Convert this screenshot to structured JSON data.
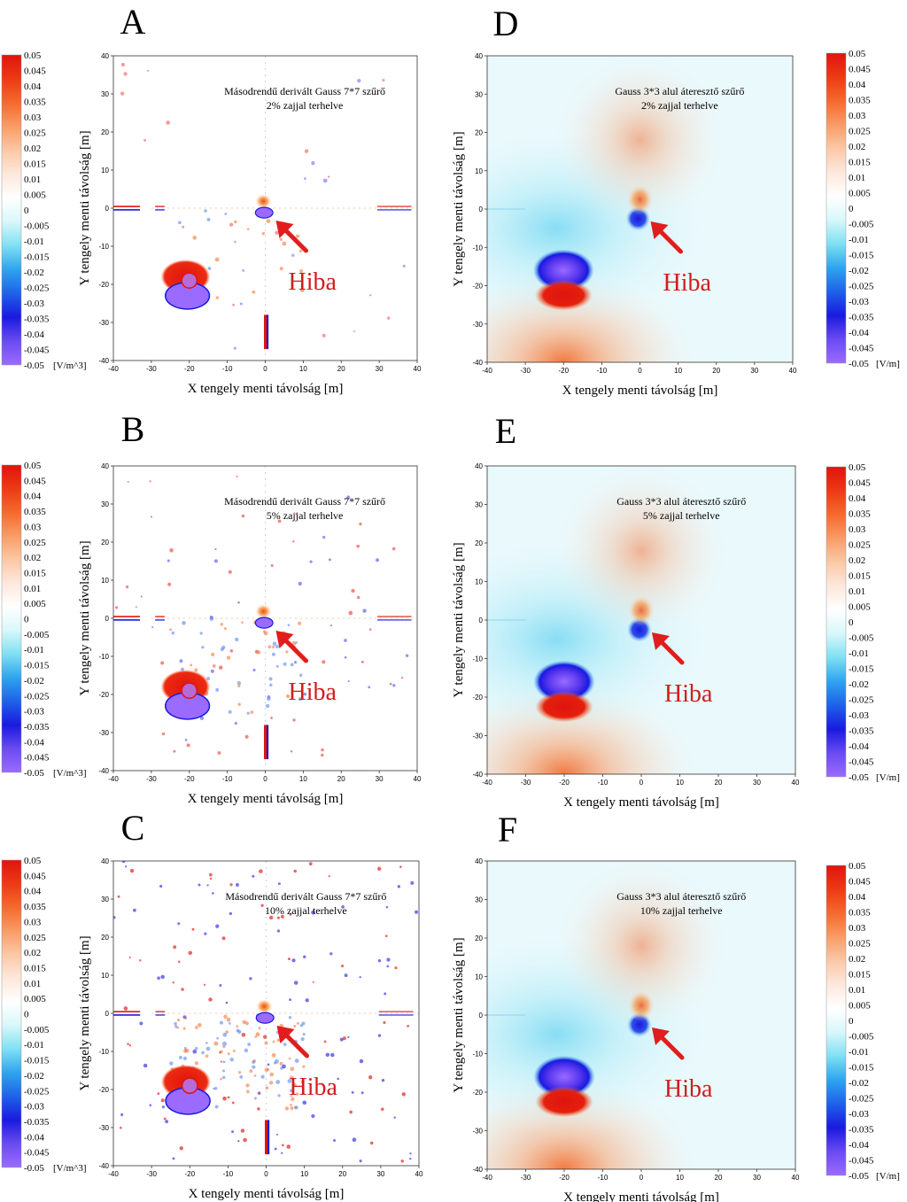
{
  "figure_title": "",
  "colors": {
    "colormap": [
      "#9b6bff",
      "#6a4bf0",
      "#1a1adf",
      "#1e62e8",
      "#2fa4ee",
      "#7fe0f3",
      "#d8f7fa",
      "#ffffff",
      "#fde8dc",
      "#fbc8a6",
      "#f99c66",
      "#f46a2e",
      "#ec3a14",
      "#e0140e"
    ],
    "arrow": "#e11d1d",
    "hiba_text": "#d11d1d"
  },
  "chart_data": [
    {
      "panel": "A",
      "type": "heatmap",
      "filter": "derivative",
      "annotation_line1": "Másodrendű derivált Gauss 7*7 szűrő",
      "annotation_line2": "2% zajjal terhelve",
      "arrow_label": "Hiba",
      "xlabel": "X tengely menti távolság [m]",
      "ylabel": "Y tengely menti távolság [m]",
      "xlim": [
        -40,
        40
      ],
      "ylim": [
        -40,
        40
      ],
      "xticks": [
        "-40",
        "-30",
        "-20",
        "-10",
        "0",
        "10",
        "20",
        "30",
        "40"
      ],
      "yticks": [
        "-40",
        "-30",
        "-20",
        "-10",
        "0",
        "10",
        "20",
        "30",
        "40"
      ],
      "colorbar_ticks": [
        "0.05",
        "0.045",
        "0.04",
        "0.035",
        "0.03",
        "0.025",
        "0.02",
        "0.015",
        "0.01",
        "0.005",
        "0",
        "-0.005",
        "-0.01",
        "-0.015",
        "-0.02",
        "-0.025",
        "-0.03",
        "-0.035",
        "-0.04",
        "-0.045",
        "-0.05"
      ],
      "colorbar_unit": "[V/m^3]",
      "colorbar_side": "left",
      "noise_level": 2
    },
    {
      "panel": "B",
      "type": "heatmap",
      "filter": "derivative",
      "annotation_line1": "Másodrendű derivált Gauss 7*7 szűrő",
      "annotation_line2": "5% zajjal terhelve",
      "arrow_label": "Hiba",
      "xlabel": "X tengely menti távolság [m]",
      "ylabel": "Y tengely menti távolság [m]",
      "xlim": [
        -40,
        40
      ],
      "ylim": [
        -40,
        40
      ],
      "xticks": [
        "-40",
        "-30",
        "-20",
        "-10",
        "0",
        "10",
        "20",
        "30",
        "40"
      ],
      "yticks": [
        "-40",
        "-30",
        "-20",
        "-10",
        "0",
        "10",
        "20",
        "30",
        "40"
      ],
      "colorbar_ticks": [
        "0.05",
        "0.045",
        "0.04",
        "0.035",
        "0.03",
        "0.025",
        "0.02",
        "0.015",
        "0.01",
        "0.005",
        "0",
        "-0.005",
        "-0.01",
        "-0.015",
        "-0.02",
        "-0.025",
        "-0.03",
        "-0.035",
        "-0.04",
        "-0.045",
        "-0.05"
      ],
      "colorbar_unit": "[V/m^3]",
      "colorbar_side": "left",
      "noise_level": 5
    },
    {
      "panel": "C",
      "type": "heatmap",
      "filter": "derivative",
      "annotation_line1": "Másodrendű derivált Gauss 7*7 szűrő",
      "annotation_line2": "10% zajjal terhelve",
      "arrow_label": "Hiba",
      "xlabel": "X tengely menti távolság [m]",
      "ylabel": "Y tengely menti távolság [m]",
      "xlim": [
        -40,
        40
      ],
      "ylim": [
        -40,
        40
      ],
      "xticks": [
        "-40",
        "-30",
        "-20",
        "-10",
        "0",
        "10",
        "20",
        "30",
        "40"
      ],
      "yticks": [
        "-40",
        "-30",
        "-20",
        "-10",
        "0",
        "10",
        "20",
        "30",
        "40"
      ],
      "colorbar_ticks": [
        "0.05",
        "0.045",
        "0.04",
        "0.035",
        "0.03",
        "0.025",
        "0.02",
        "0.015",
        "0.01",
        "0.005",
        "0",
        "-0.005",
        "-0.01",
        "-0.015",
        "-0.02",
        "-0.025",
        "-0.03",
        "-0.035",
        "-0.04",
        "-0.045",
        "-0.05"
      ],
      "colorbar_unit": "[V/m^3]",
      "colorbar_side": "left",
      "noise_level": 10
    },
    {
      "panel": "D",
      "type": "heatmap",
      "filter": "lowpass",
      "annotation_line1": "Gauss 3*3 alul áteresztő szűrő",
      "annotation_line2": "2% zajjal terhelve",
      "arrow_label": "Hiba",
      "xlabel": "X tengely menti távolság [m]",
      "ylabel": "Y tengely menti távolság [m]",
      "xlim": [
        -40,
        40
      ],
      "ylim": [
        -40,
        40
      ],
      "xticks": [
        "-40",
        "-30",
        "-20",
        "-10",
        "0",
        "10",
        "20",
        "30",
        "40"
      ],
      "yticks": [
        "-40",
        "-30",
        "-20",
        "-10",
        "0",
        "10",
        "20",
        "30",
        "40"
      ],
      "colorbar_ticks": [
        "0.05",
        "0.045",
        "0.04",
        "0.035",
        "0.03",
        "0.025",
        "0.02",
        "0.015",
        "0.01",
        "0.005",
        "0",
        "-0.005",
        "-0.01",
        "-0.015",
        "-0.02",
        "-0.025",
        "-0.03",
        "-0.035",
        "-0.04",
        "-0.045",
        "-0.05"
      ],
      "colorbar_unit": "[V/m]",
      "colorbar_side": "right",
      "noise_level": 2
    },
    {
      "panel": "E",
      "type": "heatmap",
      "filter": "lowpass",
      "annotation_line1": "Gauss 3*3 alul áteresztő szűrő",
      "annotation_line2": "5% zajjal terhelve",
      "arrow_label": "Hiba",
      "xlabel": "X tengely menti távolság [m]",
      "ylabel": "Y tengely menti távolság [m]",
      "xlim": [
        -40,
        40
      ],
      "ylim": [
        -40,
        40
      ],
      "xticks": [
        "-40",
        "-30",
        "-20",
        "-10",
        "0",
        "10",
        "20",
        "30",
        "40"
      ],
      "yticks": [
        "-40",
        "-30",
        "-20",
        "-10",
        "0",
        "10",
        "20",
        "30",
        "40"
      ],
      "colorbar_ticks": [
        "0.05",
        "0.045",
        "0.04",
        "0.035",
        "0.03",
        "0.025",
        "0.02",
        "0.015",
        "0.01",
        "0.005",
        "0",
        "-0.005",
        "-0.01",
        "-0.015",
        "-0.02",
        "-0.025",
        "-0.03",
        "-0.035",
        "-0.04",
        "-0.045",
        "-0.05"
      ],
      "colorbar_unit": "[V/m]",
      "colorbar_side": "right",
      "noise_level": 5
    },
    {
      "panel": "F",
      "type": "heatmap",
      "filter": "lowpass",
      "annotation_line1": "Gauss 3*3 alul áteresztő szűrő",
      "annotation_line2": "10% zajjal terhelve",
      "arrow_label": "Hiba",
      "xlabel": "X tengely menti távolság [m]",
      "ylabel": "Y tengely menti távolság [m]",
      "xlim": [
        -40,
        40
      ],
      "ylim": [
        -40,
        40
      ],
      "xticks": [
        "-40",
        "-30",
        "-20",
        "-10",
        "0",
        "10",
        "20",
        "30",
        "40"
      ],
      "yticks": [
        "-40",
        "-30",
        "-20",
        "-10",
        "0",
        "10",
        "20",
        "30",
        "40"
      ],
      "colorbar_ticks": [
        "0.05",
        "0.045",
        "0.04",
        "0.035",
        "0.03",
        "0.025",
        "0.02",
        "0.015",
        "0.01",
        "0.005",
        "0",
        "-0.005",
        "-0.01",
        "-0.015",
        "-0.02",
        "-0.025",
        "-0.03",
        "-0.035",
        "-0.04",
        "-0.045",
        "-0.05"
      ],
      "colorbar_unit": "[V/m]",
      "colorbar_side": "right",
      "noise_level": 10
    }
  ]
}
